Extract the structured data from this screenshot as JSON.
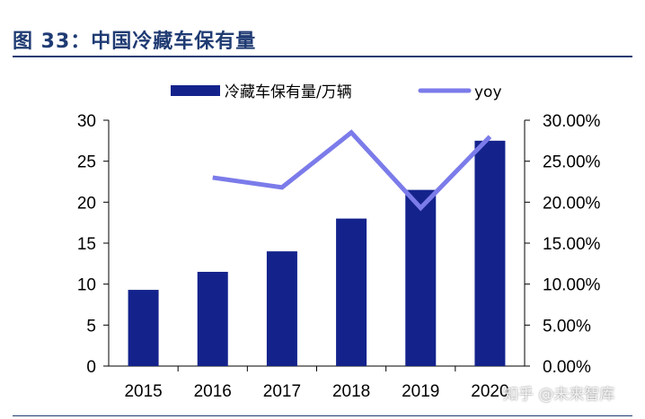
{
  "figure": {
    "title": "图 33：中国冷藏车保有量"
  },
  "watermark": "知乎 @未来智库",
  "colors": {
    "bar": "#14238c",
    "line": "#7b7bea",
    "title": "#1f3b73"
  },
  "chart_data": {
    "type": "bar",
    "categories": [
      "2015",
      "2016",
      "2017",
      "2018",
      "2019",
      "2020"
    ],
    "series": [
      {
        "name": "冷藏车保有量/万辆",
        "type": "bar",
        "axis": "left",
        "values": [
          9.3,
          11.5,
          14.0,
          18.0,
          21.5,
          27.5
        ]
      },
      {
        "name": "yoy",
        "type": "line",
        "axis": "right",
        "values": [
          null,
          0.23,
          0.218,
          0.285,
          0.193,
          0.28
        ]
      }
    ],
    "ylim_left": [
      0,
      30
    ],
    "yticks_left": [
      "0",
      "5",
      "10",
      "15",
      "20",
      "25",
      "30"
    ],
    "ylim_right": [
      0,
      0.3
    ],
    "yticks_right": [
      "0.00%",
      "5.00%",
      "10.00%",
      "15.00%",
      "20.00%",
      "25.00%",
      "30.00%"
    ],
    "grid": false,
    "legend_position": "top"
  }
}
